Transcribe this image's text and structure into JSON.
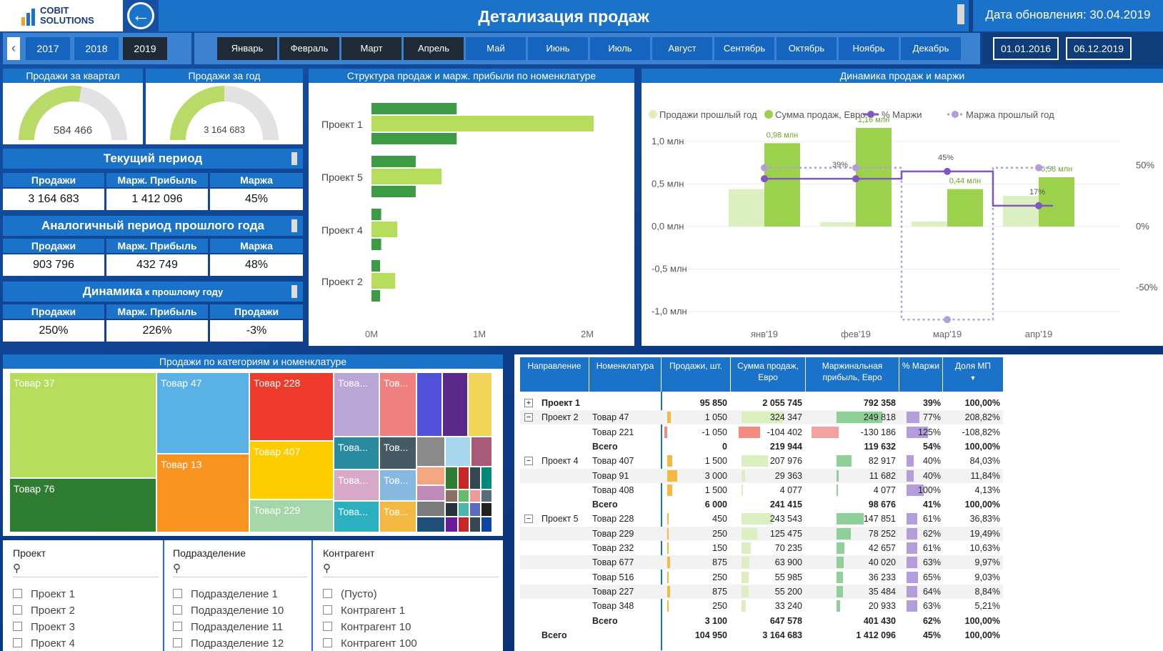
{
  "header": {
    "logo_line1": "COBIT",
    "logo_line2": "SOLUTIONS",
    "back_icon": "arrow-left-circle-icon",
    "title": "Детализация продаж",
    "update_date_label": "Дата обновления:  30.04.2019"
  },
  "filters": {
    "years": [
      "2017",
      "2018",
      "2019"
    ],
    "months": [
      "Январь",
      "Февраль",
      "Март",
      "Апрель",
      "Май",
      "Июнь",
      "Июль",
      "Август",
      "Сентябрь",
      "Октябрь",
      "Ноябрь",
      "Декабрь"
    ],
    "date_from": "01.01.2016",
    "date_to": "06.12.2019"
  },
  "gauges": {
    "quarter_title": "Продажи за квартал",
    "quarter_value": "584 466",
    "quarter_fill": 0.55,
    "year_title": "Продажи за год",
    "year_value": "3 164 683",
    "year_fill": 0.5
  },
  "kpi": {
    "current": {
      "title": "Текущий период",
      "h1": "Продажи",
      "h2": "Марж. Прибыль",
      "h3": "Маржа",
      "v1": "3 164 683",
      "v2": "1 412 096",
      "v3": "45%"
    },
    "prev": {
      "title": "Аналогичный период  прошлого года",
      "h1": "Продажи",
      "h2": "Марж. Прибыль",
      "h3": "Маржа",
      "v1": "903 796",
      "v2": "432 749",
      "v3": "48%"
    },
    "dyn": {
      "title": "Динамика",
      "title_small": " к прошлому году",
      "h1": "Продажи",
      "h2": "Марж. Прибыль",
      "h3": "Продажи",
      "v1": "250%",
      "v2": "226%",
      "v3": "-3%"
    }
  },
  "bar_panel": {
    "title": "Структура продаж и марж. прибыли по номенклатуре",
    "categories": [
      "Проект 1",
      "Проект 5",
      "Проект 4",
      "Проект 2"
    ],
    "ticks": [
      "0M",
      "1M",
      "2M"
    ]
  },
  "line_panel": {
    "title": "Динамика продаж и маржи",
    "legend": [
      "Продажи прошлый год",
      "Сумма продаж, Евро",
      "% Маржи",
      "Маржа прошлый год"
    ],
    "y_left": [
      "1,0 млн",
      "0,5 млн",
      "0,0 млн",
      "-0,5 млн",
      "-1,0 млн"
    ],
    "y_right": [
      "50%",
      "0%",
      "-50%"
    ],
    "x_labels": [
      "янв'19",
      "фев'19",
      "мар'19",
      "апр'19"
    ],
    "sales_labels": [
      "0,98 млн",
      "1,16 млн",
      "0,44 млн",
      "0,58 млн"
    ],
    "margin_labels": [
      "39%",
      "45%",
      "17%"
    ]
  },
  "chart_data": [
    {
      "type": "bar",
      "title": "Структура продаж и марж. прибыли по номенклатуре",
      "orientation": "horizontal",
      "categories": [
        "Проект 1",
        "Проект 5",
        "Проект 4",
        "Проект 2"
      ],
      "series": [
        {
          "values": [
            0.79,
            0.41,
            0.09,
            0.08
          ],
          "color": "#3d9a45"
        },
        {
          "values": [
            2.06,
            0.65,
            0.24,
            0.22
          ],
          "color": "#b5dc5a"
        },
        {
          "values": [
            0.79,
            0.41,
            0.09,
            0.08
          ],
          "color": "#3d9a45"
        }
      ],
      "xlim": [
        0,
        2.1
      ],
      "x_ticks": [
        "0M",
        "1M",
        "2M"
      ]
    },
    {
      "type": "bar",
      "title": "Динамика продаж и маржи",
      "categories": [
        "янв'19",
        "фев'19",
        "мар'19",
        "апр'19"
      ],
      "series": [
        {
          "name": "Продажи прошлый год",
          "values": [
            0.44,
            0.05,
            0.06,
            0.36
          ],
          "color": "#dcefc0"
        },
        {
          "name": "Сумма продаж, Евро",
          "values": [
            0.98,
            1.16,
            0.44,
            0.58
          ],
          "color": "#9bd14b"
        },
        {
          "name": "% Маржи",
          "values": [
            39,
            39,
            45,
            17
          ],
          "color": "#7e57c2",
          "axis": "right"
        },
        {
          "name": "Маржа прошлый год",
          "values": [
            48,
            48,
            -76,
            48
          ],
          "color": "#b39ddb",
          "axis": "right"
        }
      ],
      "ylim": [
        -1.15,
        1.2
      ],
      "y2lim": [
        -75,
        75
      ]
    }
  ],
  "treemap": {
    "title": "Продажи по категориям и номенклатуре",
    "labels": [
      "Товар 37",
      "Товар 76",
      "Товар 47",
      "Товар 13",
      "Товар 228",
      "Товар 407",
      "Товар 229",
      "Това...",
      "Тов...",
      "Това...",
      "Тов...",
      "Това...",
      "Тов...",
      "Това...",
      "Тов..."
    ]
  },
  "slicers": {
    "project": {
      "title": "Проект",
      "items": [
        "Проект 1",
        "Проект 2",
        "Проект 3",
        "Проект 4"
      ]
    },
    "division": {
      "title": "Подразделение",
      "items": [
        "Подразделение 1",
        "Подразделение 10",
        "Подразделение 11",
        "Подразделение 12"
      ]
    },
    "counterparty": {
      "title": "Контрагент",
      "items": [
        "(Пусто)",
        "Контрагент 1",
        "Контрагент 10",
        "Контрагент 100"
      ]
    }
  },
  "table": {
    "headers": [
      "Направление",
      "Номенклатура",
      "Продажи, шт.",
      "Сумма продаж, Евро",
      "Маржинальная прибыль, Евро",
      "% Маржи",
      "Доля МП"
    ],
    "rows": [
      {
        "dir": "Проект 1",
        "exp": "+",
        "item": "",
        "qty": "95 850",
        "sum": "2 055 745",
        "mp": "792 358",
        "pct": "39%",
        "share": "100,00%",
        "bold": true
      },
      {
        "dir": "Проект 2",
        "exp": "−",
        "item": "Товар 47",
        "qty": "1 050",
        "sum": "324 347",
        "mp": "249 818",
        "pct": "77%",
        "share": "208,82%"
      },
      {
        "dir": "",
        "item": "Товар 221",
        "qty": "-1 050",
        "sum": "-104 402",
        "mp": "-130 186",
        "pct": "125%",
        "share": "-108,82%"
      },
      {
        "dir": "",
        "item": "Всего",
        "qty": "0",
        "sum": "219 944",
        "mp": "119 632",
        "pct": "54%",
        "share": "100,00%",
        "bold": true
      },
      {
        "dir": "Проект 4",
        "exp": "−",
        "item": "Товар 407",
        "qty": "1 500",
        "sum": "207 976",
        "mp": "82 917",
        "pct": "40%",
        "share": "84,03%"
      },
      {
        "dir": "",
        "item": "Товар 91",
        "qty": "3 000",
        "sum": "29 363",
        "mp": "11 682",
        "pct": "40%",
        "share": "11,84%"
      },
      {
        "dir": "",
        "item": "Товар 408",
        "qty": "1 500",
        "sum": "4 077",
        "mp": "4 077",
        "pct": "100%",
        "share": "4,13%"
      },
      {
        "dir": "",
        "item": "Всего",
        "qty": "6 000",
        "sum": "241 415",
        "mp": "98 676",
        "pct": "41%",
        "share": "100,00%",
        "bold": true
      },
      {
        "dir": "Проект 5",
        "exp": "−",
        "item": "Товар 228",
        "qty": "450",
        "sum": "243 543",
        "mp": "147 851",
        "pct": "61%",
        "share": "36,83%"
      },
      {
        "dir": "",
        "item": "Товар 229",
        "qty": "250",
        "sum": "125 475",
        "mp": "78 252",
        "pct": "62%",
        "share": "19,49%"
      },
      {
        "dir": "",
        "item": "Товар 232",
        "qty": "150",
        "sum": "70 235",
        "mp": "42 657",
        "pct": "61%",
        "share": "10,63%"
      },
      {
        "dir": "",
        "item": "Товар 677",
        "qty": "875",
        "sum": "63 900",
        "mp": "40 020",
        "pct": "63%",
        "share": "9,97%"
      },
      {
        "dir": "",
        "item": "Товар 516",
        "qty": "250",
        "sum": "55 985",
        "mp": "36 233",
        "pct": "65%",
        "share": "9,03%"
      },
      {
        "dir": "",
        "item": "Товар 227",
        "qty": "875",
        "sum": "55 200",
        "mp": "35 484",
        "pct": "64%",
        "share": "8,84%"
      },
      {
        "dir": "",
        "item": "Товар 348",
        "qty": "250",
        "sum": "33 240",
        "mp": "20 933",
        "pct": "63%",
        "share": "5,21%"
      },
      {
        "dir": "",
        "item": "Всего",
        "qty": "3 100",
        "sum": "647 578",
        "mp": "401 430",
        "pct": "62%",
        "share": "100,00%",
        "bold": true
      },
      {
        "dir": "Всего",
        "item": "",
        "qty": "104 950",
        "sum": "3 164 683",
        "mp": "1 412 096",
        "pct": "45%",
        "share": "100,00%",
        "bold": true,
        "total": true
      }
    ]
  }
}
